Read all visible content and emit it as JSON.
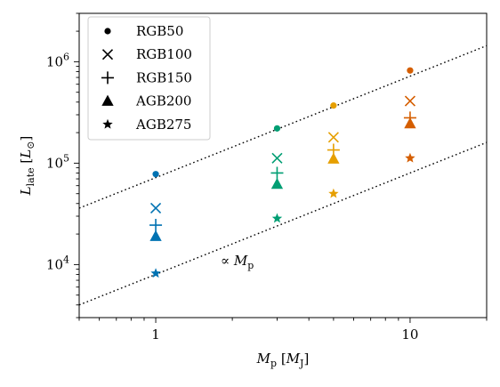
{
  "chart_data": {
    "type": "scatter",
    "xscale": "log",
    "yscale": "log",
    "xlim": [
      0.5,
      20
    ],
    "ylim": [
      3000,
      3000000
    ],
    "xlabel": "M_p [M_J]",
    "ylabel": "L_late [L_⊙]",
    "x_tick_labels": [
      "1",
      "10"
    ],
    "y_tick_labels": [
      "10^4",
      "10^5",
      "10^6"
    ],
    "legend_placement": "top-left",
    "legend": [
      "RGB50",
      "RGB100",
      "RGB150",
      "AGB200",
      "AGB275"
    ],
    "series": [
      {
        "name": "RGB50",
        "marker": "circle",
        "points": [
          {
            "x": 1,
            "y": 78000
          },
          {
            "x": 3,
            "y": 220000
          },
          {
            "x": 5,
            "y": 370000
          },
          {
            "x": 10,
            "y": 820000
          }
        ]
      },
      {
        "name": "RGB100",
        "marker": "x",
        "points": [
          {
            "x": 1,
            "y": 36000
          },
          {
            "x": 3,
            "y": 112000
          },
          {
            "x": 5,
            "y": 180000
          },
          {
            "x": 10,
            "y": 410000
          }
        ]
      },
      {
        "name": "RGB150",
        "marker": "plus",
        "points": [
          {
            "x": 1,
            "y": 24500
          },
          {
            "x": 3,
            "y": 80000
          },
          {
            "x": 5,
            "y": 135000
          },
          {
            "x": 10,
            "y": 280000
          }
        ]
      },
      {
        "name": "AGB200",
        "marker": "triangle",
        "points": [
          {
            "x": 1,
            "y": 19000
          },
          {
            "x": 3,
            "y": 62000
          },
          {
            "x": 5,
            "y": 110000
          },
          {
            "x": 10,
            "y": 245000
          }
        ]
      },
      {
        "name": "AGB275",
        "marker": "star",
        "points": [
          {
            "x": 1,
            "y": 8200
          },
          {
            "x": 3,
            "y": 28500
          },
          {
            "x": 5,
            "y": 50000
          },
          {
            "x": 10,
            "y": 112000
          }
        ]
      }
    ],
    "mass_colors": {
      "1": "#0072b2",
      "3": "#009e73",
      "5": "#e69f00",
      "10": "#d55e00"
    },
    "reference_lines": [
      {
        "style": "dotted",
        "x0": 0.5,
        "y0": 36000,
        "x1": 20,
        "y1": 1440000
      },
      {
        "style": "dotted",
        "x0": 0.5,
        "y0": 4000,
        "x1": 20,
        "y1": 160000
      }
    ],
    "annotation": {
      "text": "∝ M_p",
      "x": 1.8,
      "y": 11000
    }
  }
}
